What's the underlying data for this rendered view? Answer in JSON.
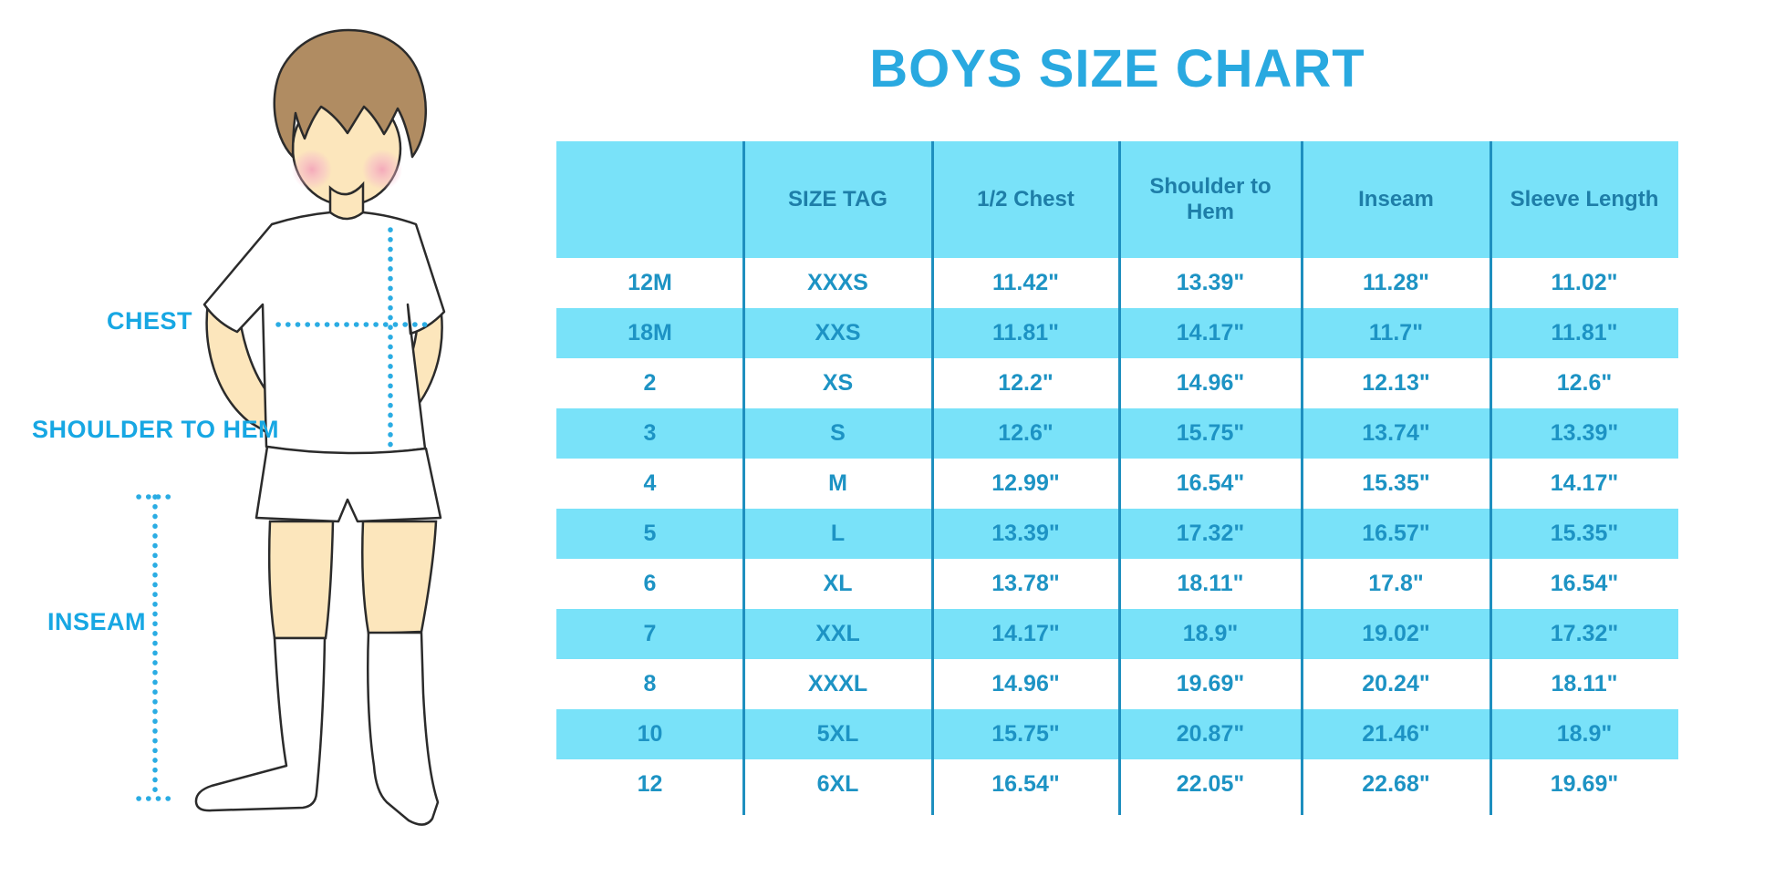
{
  "chart_data": {
    "type": "table",
    "title": "BOYS SIZE CHART",
    "columns": [
      "",
      "SIZE TAG",
      "1/2 Chest",
      "Shoulder to Hem",
      "Inseam",
      "Sleeve Length"
    ],
    "rows": [
      [
        "12M",
        "XXXS",
        "11.42\"",
        "13.39\"",
        "11.28\"",
        "11.02\""
      ],
      [
        "18M",
        "XXS",
        "11.81\"",
        "14.17\"",
        "11.7\"",
        "11.81\""
      ],
      [
        "2",
        "XS",
        "12.2\"",
        "14.96\"",
        "12.13\"",
        "12.6\""
      ],
      [
        "3",
        "S",
        "12.6\"",
        "15.75\"",
        "13.74\"",
        "13.39\""
      ],
      [
        "4",
        "M",
        "12.99\"",
        "16.54\"",
        "15.35\"",
        "14.17\""
      ],
      [
        "5",
        "L",
        "13.39\"",
        "17.32\"",
        "16.57\"",
        "15.35\""
      ],
      [
        "6",
        "XL",
        "13.78\"",
        "18.11\"",
        "17.8\"",
        "16.54\""
      ],
      [
        "7",
        "XXL",
        "14.17\"",
        "18.9\"",
        "19.02\"",
        "17.32\""
      ],
      [
        "8",
        "XXXL",
        "14.96\"",
        "19.69\"",
        "20.24\"",
        "18.11\""
      ],
      [
        "10",
        "5XL",
        "15.75\"",
        "20.87\"",
        "21.46\"",
        "18.9\""
      ],
      [
        "12",
        "6XL",
        "16.54\"",
        "22.05\"",
        "22.68\"",
        "19.69\""
      ]
    ],
    "row_alternate_background": "#79E2F9",
    "legend_position": "none",
    "grid": "vertical-dividers-only"
  },
  "figure": {
    "labels": {
      "chest": "CHEST",
      "shoulder_to_hem": "SHOULDER TO HEM",
      "inseam": "INSEAM"
    }
  },
  "colors": {
    "title_blue": "#29A9E0",
    "label_blue": "#17A7E3",
    "table_cyan": "#79E2F9",
    "header_text": "#1E7EA8",
    "cell_text": "#1D93C4",
    "divider_blue": "#1E8FBF",
    "dotted_line_blue": "#2AACE3",
    "skin": "#FCE6BC",
    "hair": "#B08C62"
  }
}
